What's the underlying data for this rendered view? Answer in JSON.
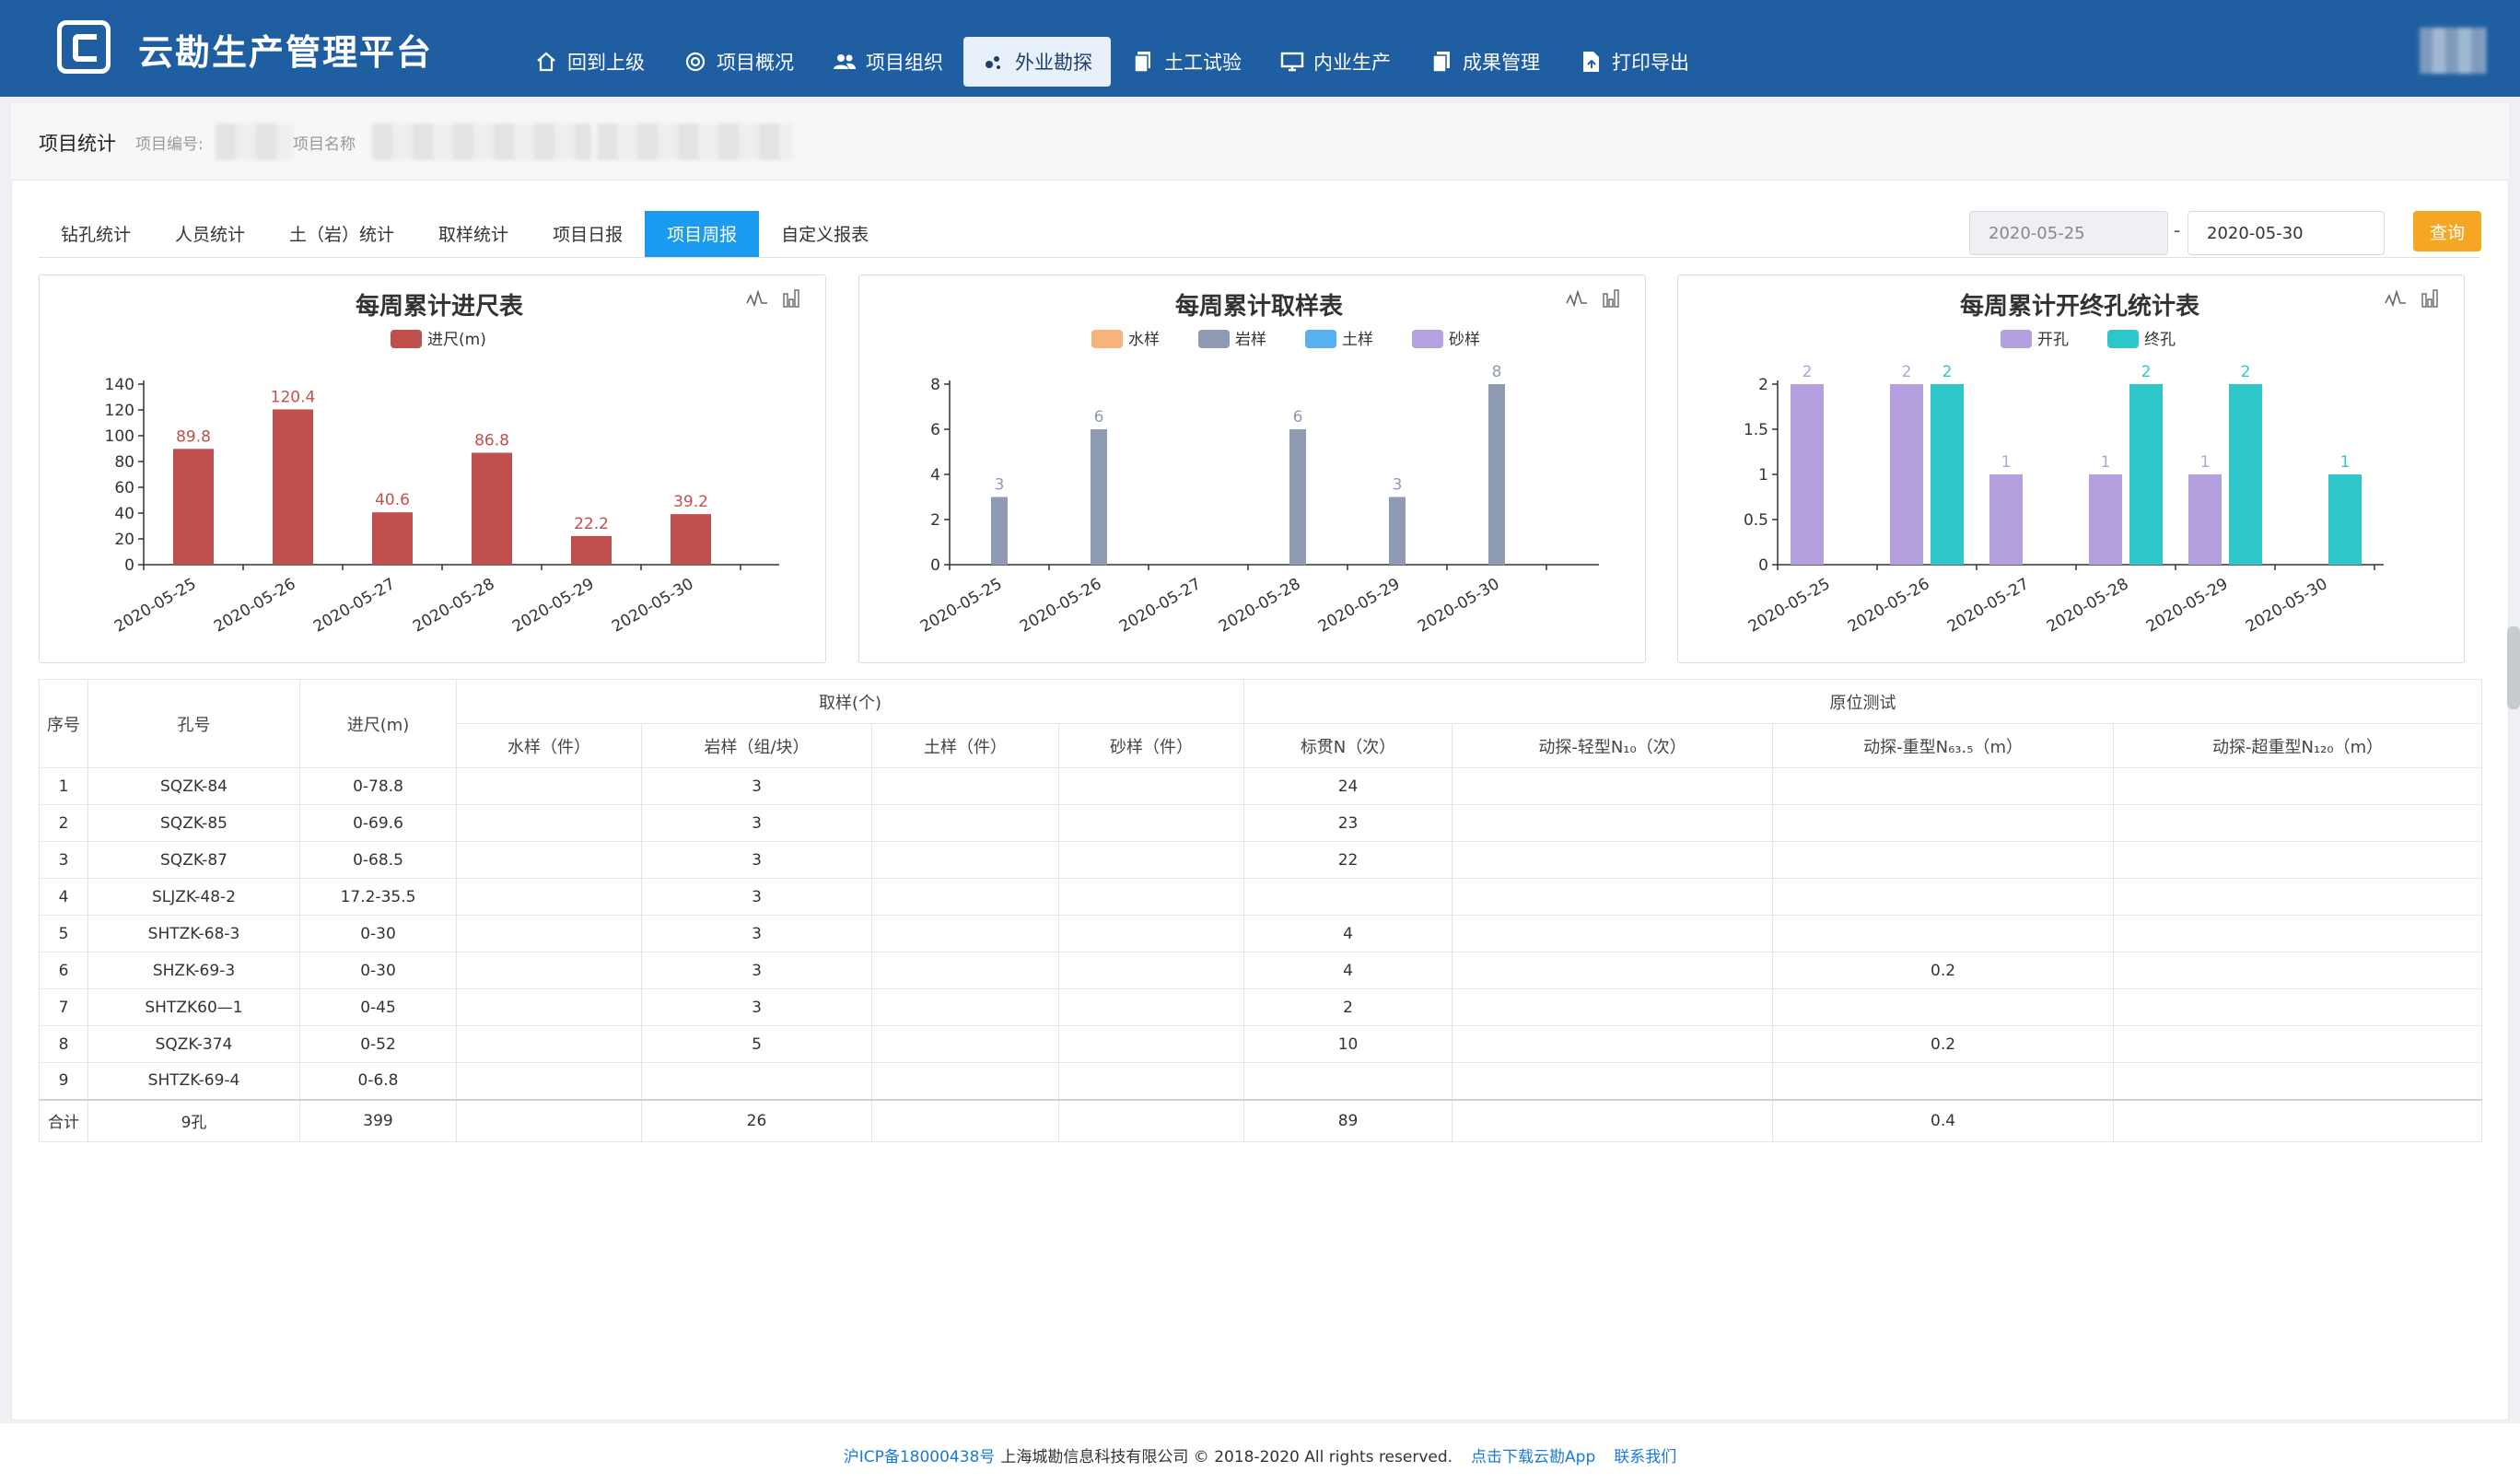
{
  "app": {
    "title": "云勘生产管理平台"
  },
  "nav": [
    {
      "label": "回到上级",
      "icon": "home-icon"
    },
    {
      "label": "项目概况",
      "icon": "target-icon"
    },
    {
      "label": "项目组织",
      "icon": "users-icon"
    },
    {
      "label": "外业勘探",
      "icon": "dots-icon",
      "active": true
    },
    {
      "label": "土工试验",
      "icon": "document-icon"
    },
    {
      "label": "内业生产",
      "icon": "monitor-icon"
    },
    {
      "label": "成果管理",
      "icon": "file-icon"
    },
    {
      "label": "打印导出",
      "icon": "export-icon"
    }
  ],
  "info": {
    "title": "项目统计",
    "code_label": "项目编号:",
    "name_label": "项目名称"
  },
  "tabs": [
    "钻孔统计",
    "人员统计",
    "土（岩）统计",
    "取样统计",
    "项目日报",
    "项目周报",
    "自定义报表"
  ],
  "active_tab": 5,
  "filter": {
    "start": "2020-05-25",
    "sep": "-",
    "end": "2020-05-30",
    "query_label": "查询"
  },
  "colors": {
    "header": "#1f5fa1",
    "footage": "#c0504d",
    "rock": "#8e9bb3",
    "open": "#b4a0df",
    "close": "#2ec7c9",
    "water": "#f8b27c",
    "soil": "#5ab1ef",
    "sand": "#b6a2de"
  },
  "chart_data": [
    {
      "type": "bar",
      "title": "每周累计进尺表",
      "categories": [
        "2020-05-25",
        "2020-05-26",
        "2020-05-27",
        "2020-05-28",
        "2020-05-29",
        "2020-05-30"
      ],
      "series": [
        {
          "name": "进尺(m)",
          "values": [
            89.8,
            120.4,
            40.6,
            86.8,
            22.2,
            39.2
          ]
        }
      ],
      "yticks": [
        "0",
        "20",
        "40",
        "60",
        "80",
        "100",
        "120",
        "140"
      ],
      "ylim": [
        0,
        140
      ]
    },
    {
      "type": "bar",
      "title": "每周累计取样表",
      "categories": [
        "2020-05-25",
        "2020-05-26",
        "2020-05-27",
        "2020-05-28",
        "2020-05-29",
        "2020-05-30"
      ],
      "legend": [
        "水样",
        "岩样",
        "土样",
        "砂样"
      ],
      "series": [
        {
          "name": "岩样",
          "values": [
            3,
            6,
            0,
            6,
            3,
            8
          ]
        }
      ],
      "yticks": [
        "0",
        "2",
        "4",
        "6",
        "8"
      ],
      "ylim": [
        0,
        8
      ]
    },
    {
      "type": "bar",
      "title": "每周累计开终孔统计表",
      "categories": [
        "2020-05-25",
        "2020-05-26",
        "2020-05-27",
        "2020-05-28",
        "2020-05-29",
        "2020-05-30"
      ],
      "series": [
        {
          "name": "开孔",
          "values": [
            2,
            2,
            1,
            1,
            1,
            0
          ]
        },
        {
          "name": "终孔",
          "values": [
            0,
            2,
            0,
            2,
            2,
            1
          ]
        }
      ],
      "yticks": [
        "0",
        "0.5",
        "1",
        "1.5",
        "2"
      ],
      "ylim": [
        0,
        2
      ]
    }
  ],
  "table": {
    "h_seq": "序号",
    "h_hole": "孔号",
    "h_depth": "进尺(m)",
    "h_sample": "取样(个)",
    "h_insitu": "原位测试",
    "sub": [
      "水样（件）",
      "岩样（组/块）",
      "土样（件）",
      "砂样（件）",
      "标贯N（次）",
      "动探-轻型N₁₀（次）",
      "动探-重型N₆₃.₅（m）",
      "动探-超重型N₁₂₀（m）"
    ],
    "rows": [
      [
        "1",
        "SQZK-84",
        "0-78.8",
        "",
        "3",
        "",
        "",
        "24",
        "",
        "",
        ""
      ],
      [
        "2",
        "SQZK-85",
        "0-69.6",
        "",
        "3",
        "",
        "",
        "23",
        "",
        "",
        ""
      ],
      [
        "3",
        "SQZK-87",
        "0-68.5",
        "",
        "3",
        "",
        "",
        "22",
        "",
        "",
        ""
      ],
      [
        "4",
        "SLJZK-48-2",
        "17.2-35.5",
        "",
        "3",
        "",
        "",
        "",
        "",
        "",
        ""
      ],
      [
        "5",
        "SHTZK-68-3",
        "0-30",
        "",
        "3",
        "",
        "",
        "4",
        "",
        "",
        ""
      ],
      [
        "6",
        "SHZK-69-3",
        "0-30",
        "",
        "3",
        "",
        "",
        "4",
        "",
        "0.2",
        ""
      ],
      [
        "7",
        "SHTZK60—1",
        "0-45",
        "",
        "3",
        "",
        "",
        "2",
        "",
        "",
        ""
      ],
      [
        "8",
        "SQZK-374",
        "0-52",
        "",
        "5",
        "",
        "",
        "10",
        "",
        "0.2",
        ""
      ],
      [
        "9",
        "SHTZK-69-4",
        "0-6.8",
        "",
        "",
        "",
        "",
        "",
        "",
        "",
        ""
      ]
    ],
    "total": [
      "合计",
      "9孔",
      "399",
      "",
      "26",
      "",
      "",
      "89",
      "",
      "0.4",
      ""
    ]
  },
  "footer": {
    "icp": "沪ICP备18000438号",
    "copyright": "上海城勘信息科技有限公司 © 2018-2020 All rights reserved.",
    "download": "点击下载云勘App",
    "contact": "联系我们"
  }
}
